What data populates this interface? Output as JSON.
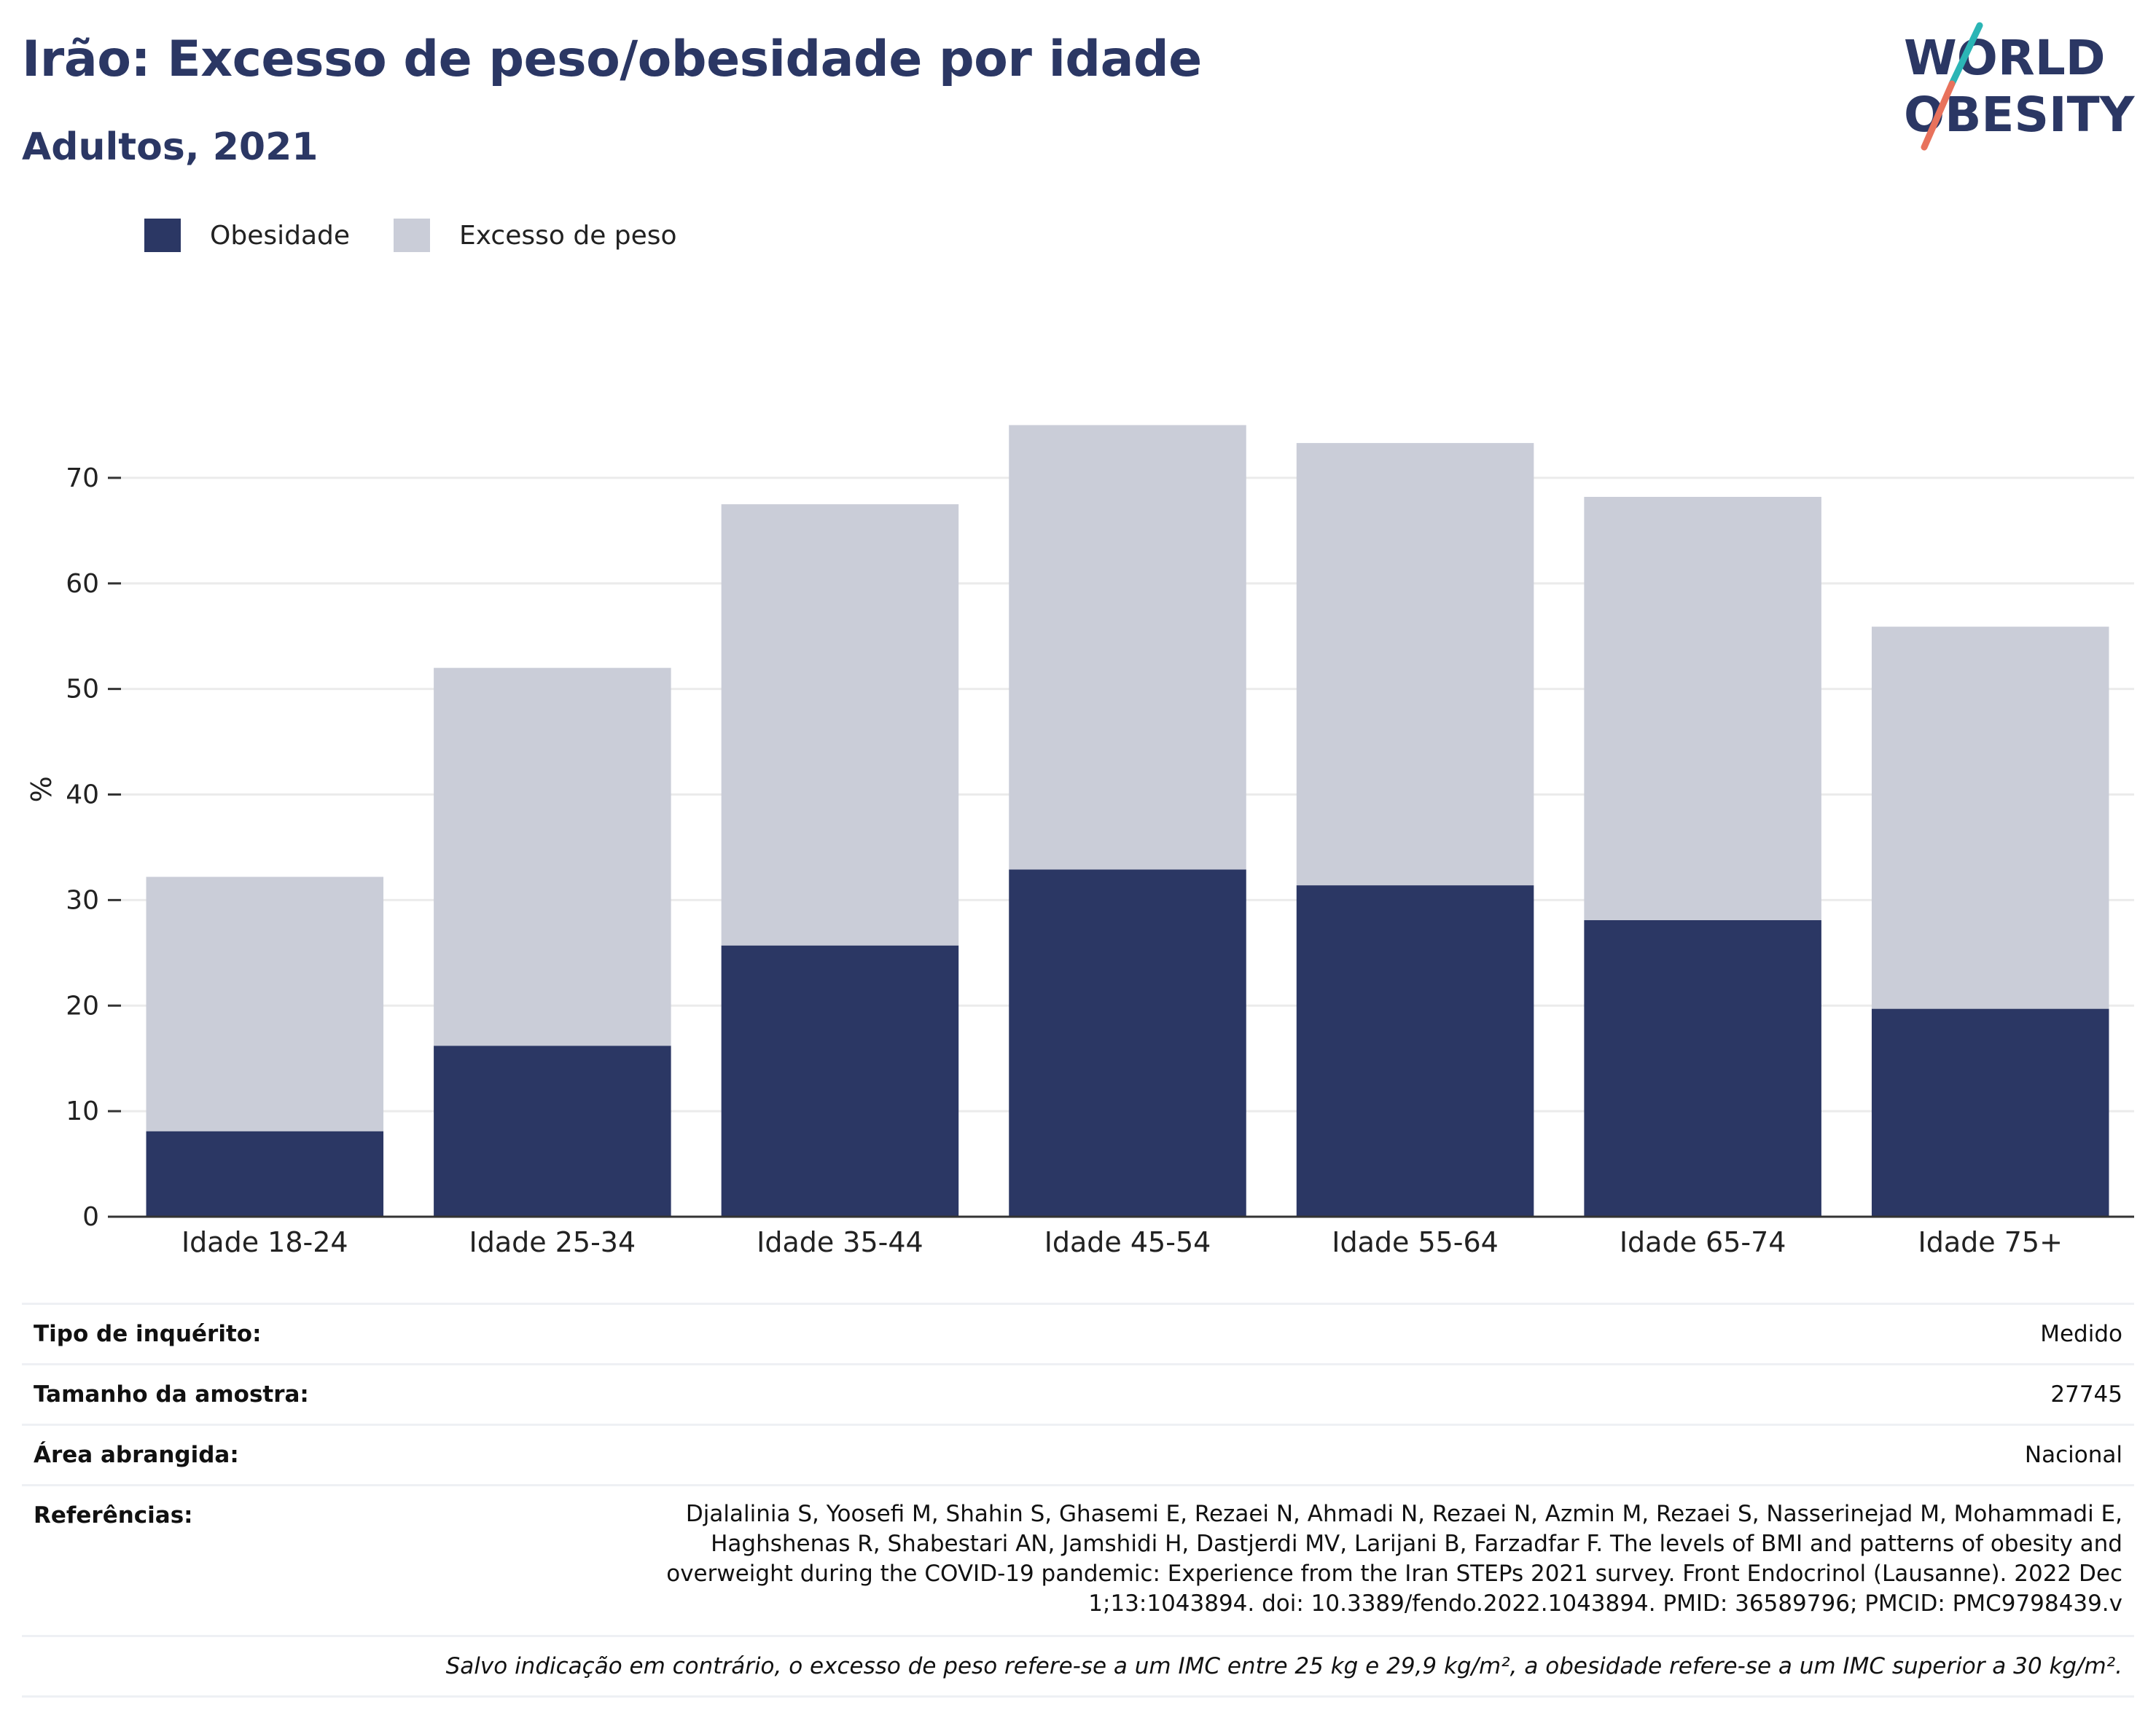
{
  "header": {
    "title": "Irão: Excesso de peso/obesidade por idade",
    "subtitle": "Adultos, 2021"
  },
  "logo": {
    "line1": "WORLD",
    "line2": "OBESITY",
    "accent_colors": [
      "#2bb5b5",
      "#e8725c"
    ]
  },
  "legend": [
    {
      "label": "Obesidade",
      "color": "#2b3764"
    },
    {
      "label": "Excesso de peso",
      "color": "#cacdd8"
    }
  ],
  "chart_data": {
    "type": "bar",
    "stacked": true,
    "categories": [
      "Idade 18-24",
      "Idade 25-34",
      "Idade 35-44",
      "Idade 45-54",
      "Idade 55-64",
      "Idade 65-74",
      "Idade 75+"
    ],
    "series": [
      {
        "name": "Obesidade",
        "color": "#2b3764",
        "values": [
          8.1,
          16.2,
          25.7,
          32.9,
          31.4,
          28.1,
          19.7
        ]
      },
      {
        "name": "Excesso de peso",
        "color": "#cacdd8",
        "values": [
          24.1,
          35.8,
          41.8,
          42.1,
          41.9,
          40.1,
          36.2
        ]
      }
    ],
    "ylabel": "%",
    "xlabel": "",
    "ylim": [
      0,
      78
    ],
    "yticks": [
      0,
      10,
      20,
      30,
      40,
      50,
      60,
      70
    ],
    "grid": true,
    "legend_position": "top-left"
  },
  "info": {
    "survey_type_label": "Tipo de inquérito:",
    "survey_type_value": "Medido",
    "sample_size_label": "Tamanho da amostra:",
    "sample_size_value": "27745",
    "coverage_label": "Área abrangida:",
    "coverage_value": "Nacional",
    "references_label": "Referências:",
    "references_value": "Djalalinia S, Yoosefi M, Shahin S, Ghasemi E, Rezaei N, Ahmadi N, Rezaei N, Azmin M, Rezaei S, Nasserinejad M, Mohammadi E, Haghshenas R, Shabestari AN, Jamshidi H, Dastjerdi MV, Larijani B, Farzadfar F. The levels of BMI and patterns of obesity and overweight during the COVID-19 pandemic: Experience from the Iran STEPs 2021 survey. Front Endocrinol (Lausanne). 2022 Dec 1;13:1043894. doi: 10.3389/fendo.2022.1043894. PMID: 36589796; PMCID: PMC9798439.v",
    "footnote": "Salvo indicação em contrário, o excesso de peso refere-se a um IMC entre 25 kg e 29,9 kg/m², a obesidade refere-se a um IMC superior a 30 kg/m²."
  }
}
